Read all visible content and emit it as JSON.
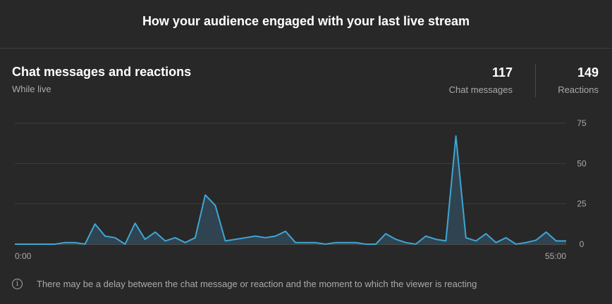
{
  "header": {
    "title": "How your audience engaged with your last live stream"
  },
  "card": {
    "title": "Chat messages and reactions",
    "subtitle": "While live",
    "metrics": [
      {
        "value": "117",
        "label": "Chat messages"
      },
      {
        "value": "149",
        "label": "Reactions"
      }
    ]
  },
  "chart_data": {
    "type": "area",
    "x_tick_labels": [
      "0:00",
      "55:00"
    ],
    "y_tick_labels": [
      "75",
      "50",
      "25",
      "0"
    ],
    "y_ticks": [
      75,
      50,
      25,
      0
    ],
    "ylim": [
      0,
      75
    ],
    "grid": true,
    "line_color": "#3ea6d4",
    "fill_color": "#2f4450",
    "values": [
      0,
      0,
      0,
      0,
      0,
      1,
      1,
      0,
      12.5,
      5,
      4,
      0,
      13,
      3,
      7.5,
      2,
      4,
      1,
      4,
      30.5,
      24,
      2,
      3,
      4,
      5,
      4,
      5,
      8,
      1,
      1,
      1,
      0,
      1,
      1,
      1,
      0,
      0,
      6.5,
      3,
      1,
      0,
      5,
      3,
      2,
      67,
      4,
      2,
      6.5,
      1,
      4,
      0,
      1,
      2.5,
      7.5,
      2,
      2
    ]
  },
  "footer": {
    "note": "There may be a delay between the chat message or reaction and the moment to which the viewer is reacting"
  },
  "icons": {
    "info": "info-icon"
  }
}
